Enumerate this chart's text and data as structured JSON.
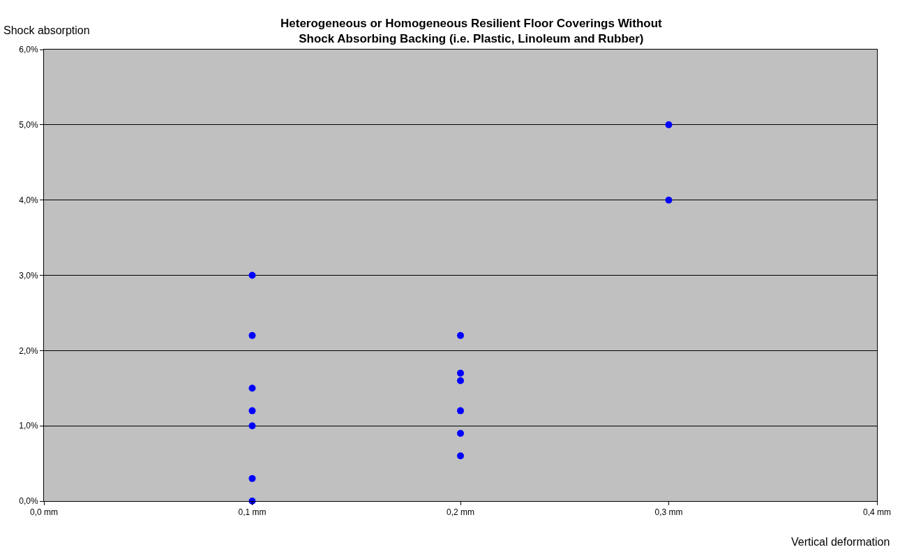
{
  "chart_data": {
    "type": "scatter",
    "title": "Heterogeneous or Homogeneous Resilient Floor Coverings Without\nShock Absorbing Backing (i.e. Plastic, Linoleum and Rubber)",
    "xlabel": "Vertical deformation",
    "ylabel": "Shock absorption",
    "x": [
      0.1,
      0.1,
      0.1,
      0.1,
      0.1,
      0.1,
      0.1,
      0.2,
      0.2,
      0.2,
      0.2,
      0.2,
      0.2,
      0.3,
      0.3
    ],
    "series": [
      {
        "color": "#0000ff",
        "values": [
          3.0,
          2.2,
          1.5,
          1.2,
          1.0,
          0.3,
          0.0,
          2.2,
          1.7,
          1.6,
          1.2,
          0.9,
          0.6,
          5.0,
          4.0
        ]
      }
    ],
    "xlim": [
      0,
      0.4
    ],
    "xticks": [
      {
        "value": 0,
        "label": "0,0 mm"
      },
      {
        "value": 0.1,
        "label": "0,1 mm"
      },
      {
        "value": 0.2,
        "label": "0,2 mm"
      },
      {
        "value": 0.3,
        "label": "0,3 mm"
      },
      {
        "value": 0.4,
        "label": "0,4 mm"
      }
    ],
    "ylim": [
      0,
      6
    ],
    "yticks": [
      {
        "value": 0,
        "label": "0,0%"
      },
      {
        "value": 1,
        "label": "1,0%"
      },
      {
        "value": 2,
        "label": "2,0%"
      },
      {
        "value": 3,
        "label": "3,0%"
      },
      {
        "value": 4,
        "label": "4,0%"
      },
      {
        "value": 5,
        "label": "5,0%"
      },
      {
        "value": 6,
        "label": "6,0%"
      }
    ],
    "grid": "y",
    "marker": "circle"
  }
}
